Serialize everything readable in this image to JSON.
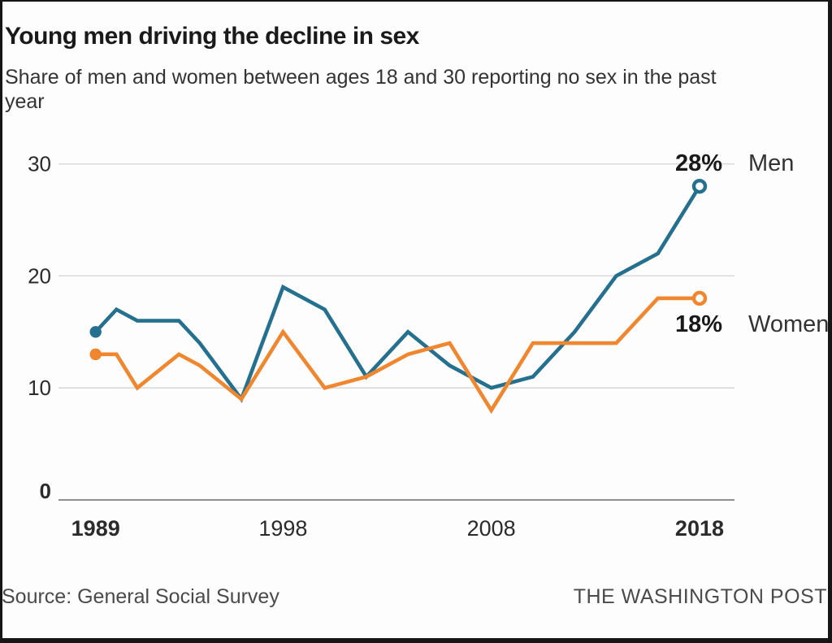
{
  "header": {
    "title": "Young men driving the decline in sex",
    "subtitle": "Share of men and women between ages 18 and 30 reporting no sex in the past year"
  },
  "footer": {
    "source": "Source: General Social Survey",
    "credit": "THE WASHINGTON POST"
  },
  "chart_data": {
    "type": "line",
    "title": "Young men driving the decline in sex",
    "subtitle": "Share of men and women between ages 18 and 30 reporting no sex in the past year",
    "x": [
      1989,
      1990,
      1991,
      1993,
      1994,
      1996,
      1998,
      2000,
      2002,
      2004,
      2006,
      2008,
      2010,
      2012,
      2014,
      2016,
      2018
    ],
    "series": [
      {
        "name": "Men",
        "color": "#25708F",
        "values": [
          15,
          17,
          16,
          16,
          14,
          9,
          19,
          17,
          11,
          15,
          12,
          10,
          11,
          15,
          20,
          22,
          28
        ],
        "end_label": "28%",
        "end_label_position": "above",
        "start_marker": "filled-dot",
        "end_marker": "open-dot"
      },
      {
        "name": "Women",
        "color": "#F0872E",
        "values": [
          13,
          13,
          10,
          13,
          12,
          9,
          15,
          10,
          11,
          13,
          14,
          8,
          14,
          14,
          14,
          18,
          18
        ],
        "end_label": "18%",
        "end_label_position": "below",
        "start_marker": "filled-dot",
        "end_marker": "open-dot"
      }
    ],
    "xticks": [
      {
        "year": 1989,
        "bold": true
      },
      {
        "year": 1998,
        "bold": false
      },
      {
        "year": 2008,
        "bold": false
      },
      {
        "year": 2018,
        "bold": true
      }
    ],
    "yticks": [
      {
        "value": 30,
        "bold": false
      },
      {
        "value": 20,
        "bold": false
      },
      {
        "value": 10,
        "bold": false
      },
      {
        "value": 0,
        "bold": true
      }
    ],
    "xlim": [
      1989,
      2018
    ],
    "ylim": [
      0,
      32
    ],
    "xlabel": "",
    "ylabel": "",
    "grid": "horizontal",
    "legend": "direct-line-labels",
    "gridline_color": "#d4d4d4",
    "zero_line_color": "#8f8f8f",
    "tick_label_color": "#2b2b2b",
    "value_label_color": "#1a1a1a"
  }
}
